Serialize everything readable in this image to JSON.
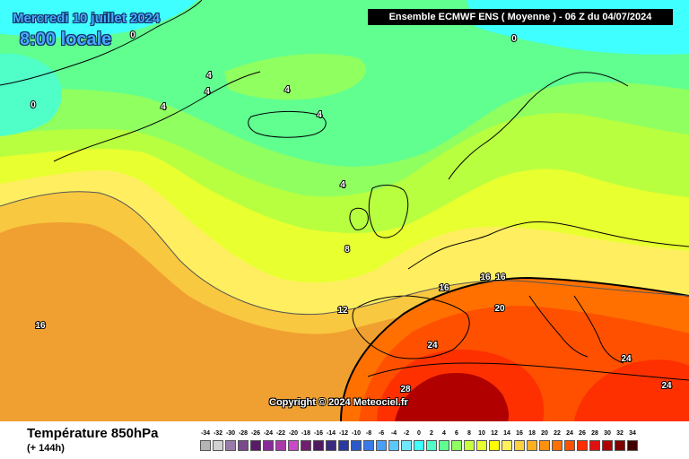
{
  "map_header": {
    "date": "Mercredi 10 juillet 2024",
    "time": "8:00 locale",
    "run_info": "Ensemble ECMWF ENS  ( Moyenne )  -  06 Z du 04/07/2024"
  },
  "copyright": "Copyright © 2024 Meteociel.fr",
  "contour_labels": [
    "0",
    "0",
    "0",
    "4",
    "4",
    "4",
    "4",
    "4",
    "4",
    "8",
    "12",
    "16",
    "16",
    "16",
    "16",
    "20",
    "24",
    "24",
    "24",
    "28"
  ],
  "variable": {
    "title": "Température 850hPa",
    "subtitle": "(+ 144h)"
  },
  "color_scale": {
    "ticks": [
      "-34",
      "-32",
      "-30",
      "-28",
      "-26",
      "-24",
      "-22",
      "-20",
      "-18",
      "-16",
      "-14",
      "-12",
      "-10",
      "-8",
      "-6",
      "-4",
      "-2",
      "0",
      "2",
      "4",
      "6",
      "8",
      "10",
      "12",
      "14",
      "16",
      "18",
      "20",
      "22",
      "24",
      "26",
      "28",
      "30",
      "32",
      "34"
    ],
    "colors": [
      "#b4b4b4",
      "#d2d2d2",
      "#9a7aa8",
      "#7a4a8c",
      "#5a1a6a",
      "#8a2a9a",
      "#aa3aaa",
      "#c84ac8",
      "#701e70",
      "#501a60",
      "#3a2a80",
      "#2a3aa0",
      "#2a5ac8",
      "#3a7ae8",
      "#4aa0f8",
      "#5ac8ff",
      "#70e8ff",
      "#40ffff",
      "#50ffc8",
      "#60ff90",
      "#90ff60",
      "#c8ff40",
      "#e8ff30",
      "#ffff00",
      "#fff060",
      "#ffd040",
      "#ffb020",
      "#ff9010",
      "#ff7000",
      "#ff5000",
      "#ff3000",
      "#e01010",
      "#b00000",
      "#800000",
      "#400000"
    ]
  }
}
